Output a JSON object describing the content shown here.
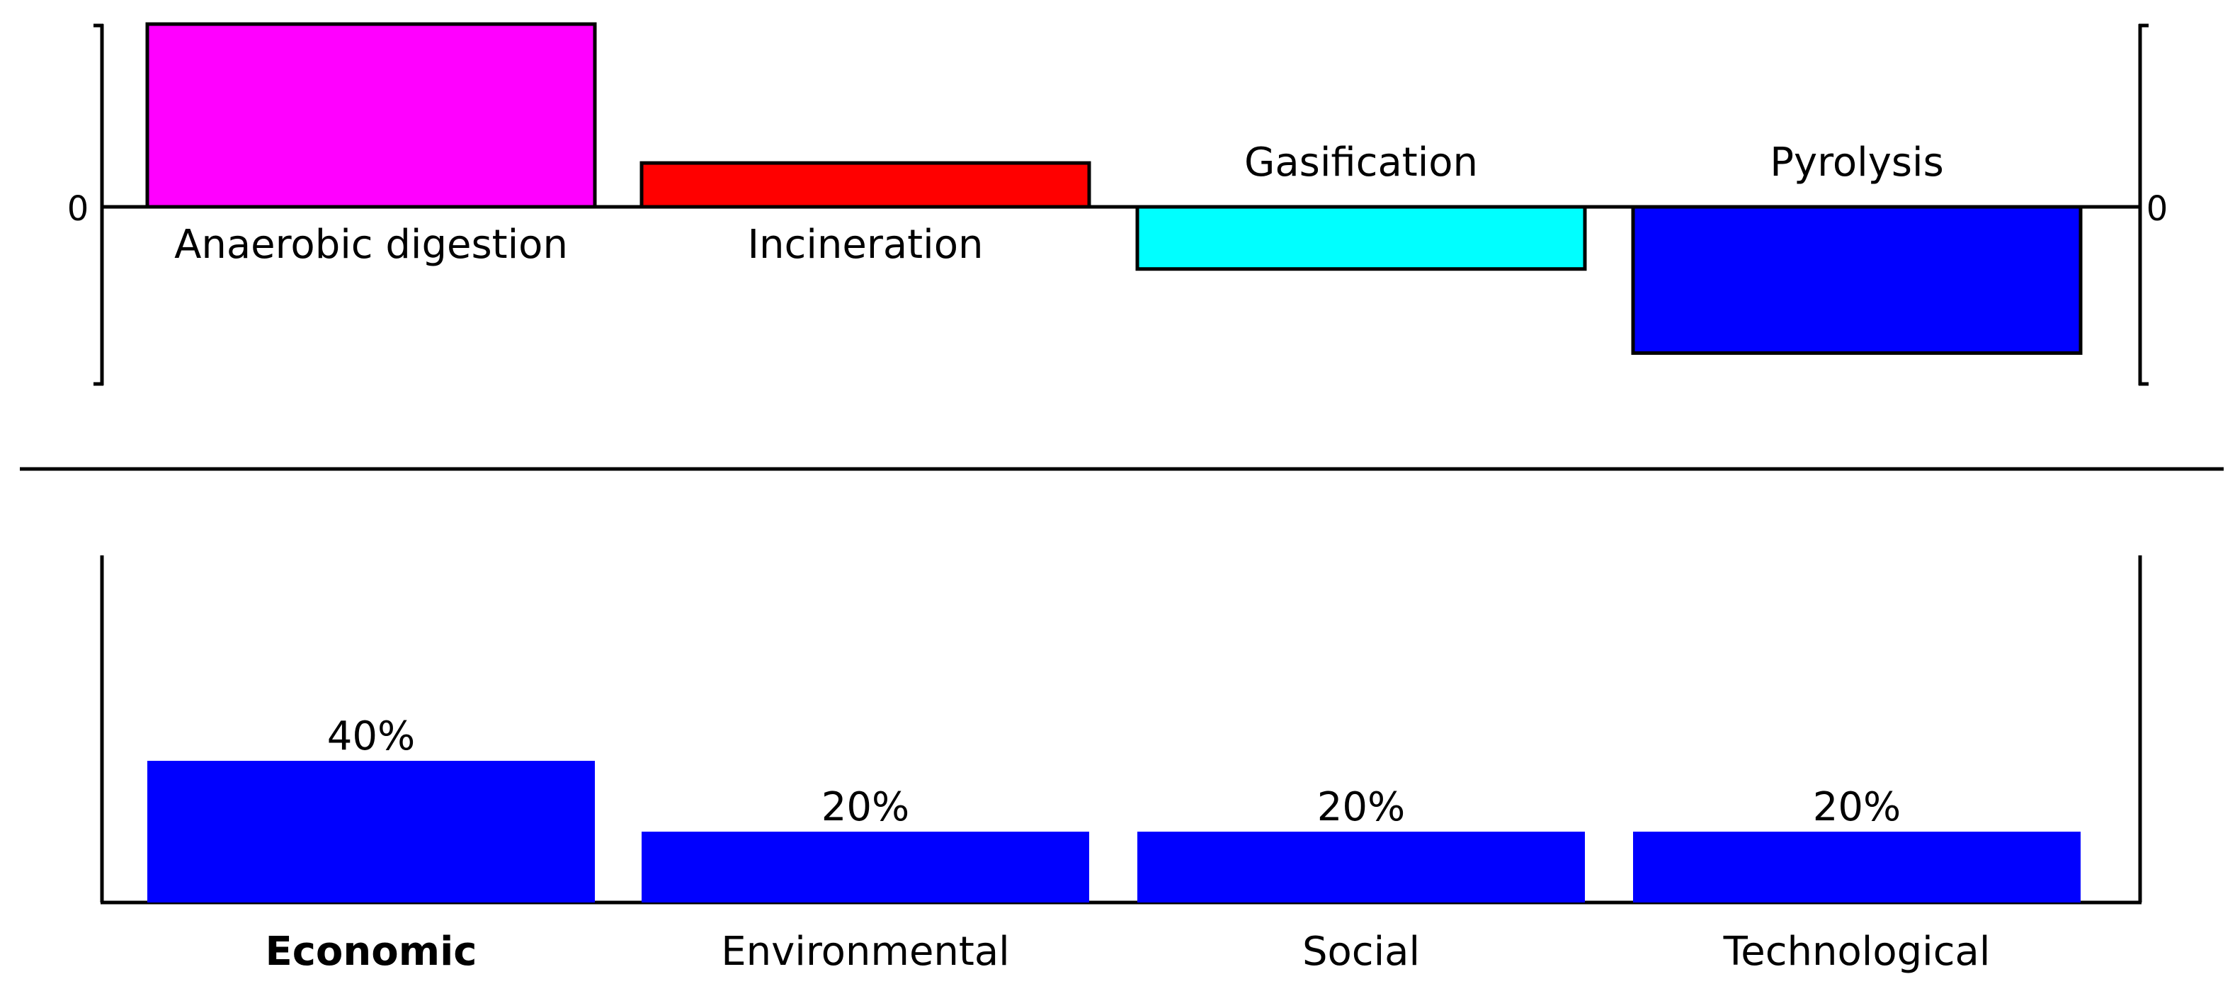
{
  "colors": {
    "axis": "#000000",
    "background": "#ffffff"
  },
  "chart_data": [
    {
      "type": "bar",
      "title": "",
      "xlabel": "",
      "ylabel": "",
      "zero_label_left": "0",
      "zero_label_right": "0",
      "ylim": [
        -1,
        1
      ],
      "grid": false,
      "categories": [
        "Anaerobic digestion",
        "Incineration",
        "Gasification",
        "Pyrolysis"
      ],
      "values": [
        1.0,
        0.24,
        -0.34,
        -0.8
      ],
      "colors": [
        "#ff00ff",
        "#ff0000",
        "#00ffff",
        "#0000ff"
      ]
    },
    {
      "type": "bar",
      "title": "",
      "xlabel": "",
      "ylabel": "",
      "ylim": [
        0,
        100
      ],
      "grid": false,
      "categories": [
        "Economic",
        "Environmental",
        "Social",
        "Technological"
      ],
      "values": [
        40,
        20,
        20,
        20
      ],
      "value_labels": [
        "40%",
        "20%",
        "20%",
        "20%"
      ],
      "highlighted_category": "Economic",
      "colors": [
        "#0000ff",
        "#0000ff",
        "#0000ff",
        "#0000ff"
      ]
    }
  ]
}
